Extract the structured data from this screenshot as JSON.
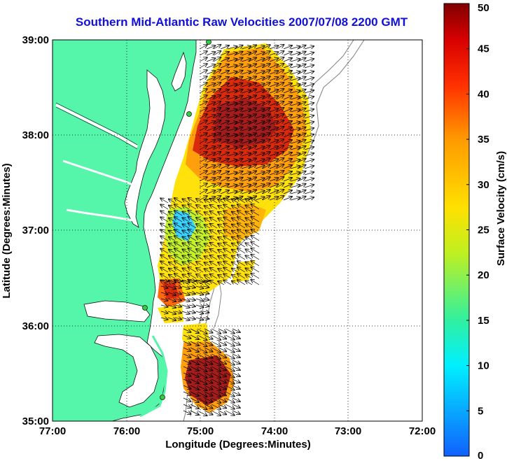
{
  "title": "Southern Mid-Atlantic Raw Velocities 2007/07/08 2200 GMT",
  "xlabel": "Longitude (Degrees:Minutes)",
  "ylabel": "Latitude (Degrees:Minutes)",
  "colorbar": {
    "label": "Surface Velocity (cm/s)",
    "min": 0,
    "max": 50,
    "ticks": [
      "0",
      "5",
      "10",
      "15",
      "20",
      "25",
      "30",
      "35",
      "40",
      "45",
      "50"
    ]
  },
  "x_ticks": [
    "77:00",
    "76:00",
    "75:00",
    "74:00",
    "73:00",
    "72:00"
  ],
  "y_ticks": [
    "39:00",
    "38:00",
    "37:00",
    "36:00",
    "35:00"
  ],
  "map_extent": {
    "lon": [
      -77,
      -72
    ],
    "lat": [
      35,
      39
    ]
  },
  "colors": {
    "land": "#55f5aa",
    "water": "#ffffff",
    "grid": "#000000",
    "title": "#1010d8"
  }
}
